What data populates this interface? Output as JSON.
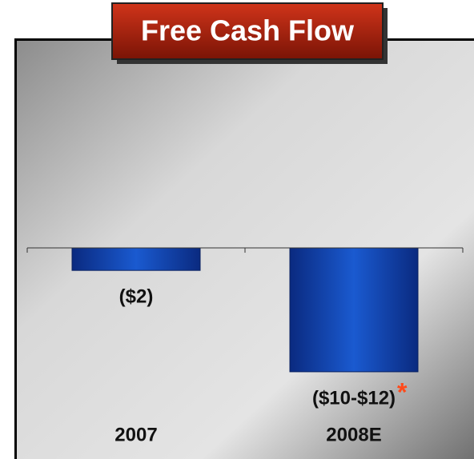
{
  "chart_data": {
    "type": "bar",
    "title": "Free Cash Flow",
    "categories": [
      "2007",
      "2008E"
    ],
    "values": [
      -2,
      -11
    ],
    "value_labels": [
      "($2)",
      "($10-$12)"
    ],
    "annotation": "*",
    "color": "#0a3fa8",
    "ylim": [
      -12,
      0
    ]
  }
}
